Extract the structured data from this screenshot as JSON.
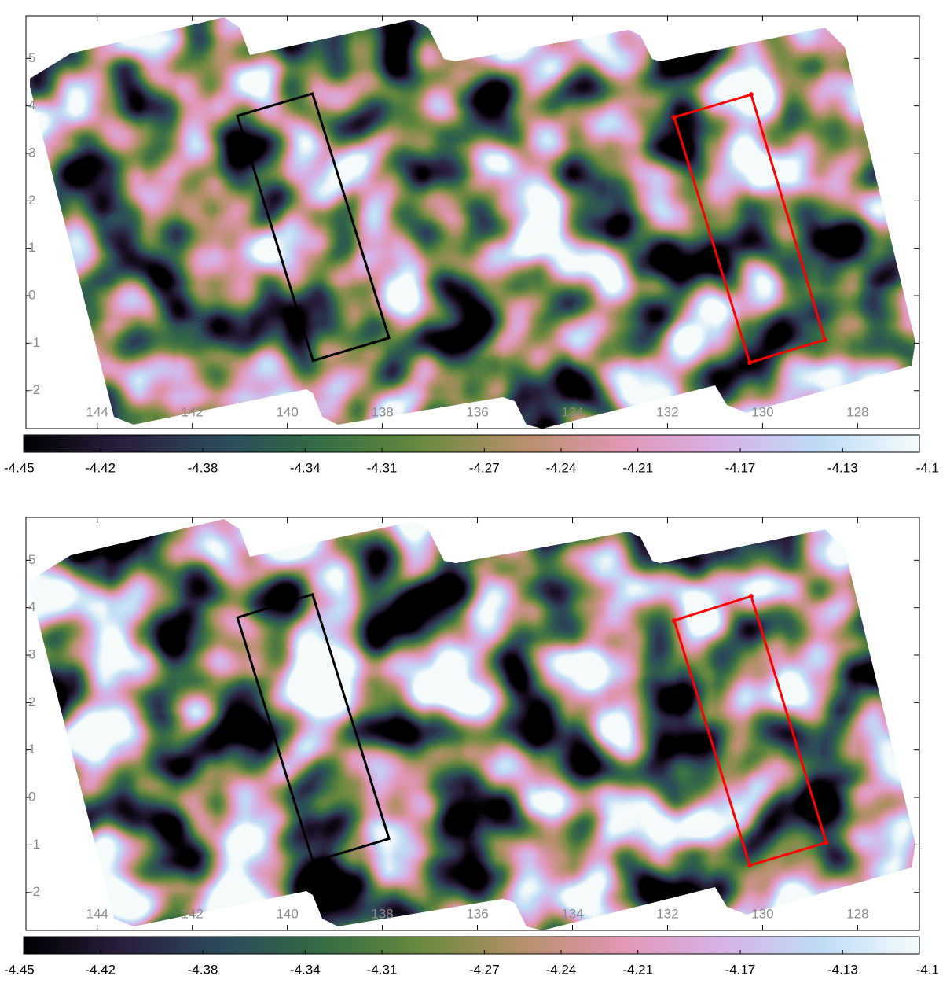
{
  "chart_data": [
    {
      "type": "heatmap",
      "xlim": [
        145.5,
        126.7
      ],
      "ylim": [
        -2.8,
        5.9
      ],
      "xticks": [
        144,
        142,
        140,
        138,
        136,
        134,
        132,
        130,
        128
      ],
      "yticks": [
        -2,
        -1,
        0,
        1,
        2,
        3,
        4,
        5
      ],
      "colormap": [
        "#000000",
        "#2a1f3d",
        "#2c4a5a",
        "#356b45",
        "#6a8a3e",
        "#b5906a",
        "#e296b4",
        "#d7b2e6",
        "#bfdcf5",
        "#f5fbfb"
      ],
      "colorbar": {
        "lim": [
          -4.45,
          -4.1
        ],
        "ticks": [
          -4.45,
          -4.42,
          -4.38,
          -4.34,
          -4.31,
          -4.27,
          -4.24,
          -4.21,
          -4.17,
          -4.13,
          -4.1
        ]
      },
      "regions": [
        {
          "color": "#000000",
          "x": [
            141.05,
            139.47,
            137.86,
            139.46
          ],
          "y": [
            3.79,
            4.26,
            -0.89,
            -1.37
          ]
        },
        {
          "color": "#ff0000",
          "x": [
            131.86,
            130.24,
            128.69,
            130.27
          ],
          "y": [
            3.76,
            4.24,
            -0.93,
            -1.41
          ]
        }
      ]
    },
    {
      "type": "heatmap",
      "xlim": [
        145.5,
        126.7
      ],
      "ylim": [
        -2.8,
        5.9
      ],
      "xticks": [
        144,
        142,
        140,
        138,
        136,
        134,
        132,
        130,
        128
      ],
      "yticks": [
        -2,
        -1,
        0,
        1,
        2,
        3,
        4,
        5
      ],
      "colormap": [
        "#000000",
        "#2a1f3d",
        "#2c4a5a",
        "#356b45",
        "#6a8a3e",
        "#b5906a",
        "#e296b4",
        "#d7b2e6",
        "#bfdcf5",
        "#f5fbfb"
      ],
      "colorbar": {
        "lim": [
          -4.45,
          -4.1
        ],
        "ticks": [
          -4.45,
          -4.42,
          -4.38,
          -4.34,
          -4.31,
          -4.27,
          -4.24,
          -4.21,
          -4.17,
          -4.13,
          -4.1
        ]
      },
      "regions": [
        {
          "color": "#000000",
          "x": [
            141.05,
            139.47,
            137.86,
            139.46
          ],
          "y": [
            3.79,
            4.28,
            -0.87,
            -1.35
          ]
        },
        {
          "color": "#ff0000",
          "x": [
            131.86,
            130.24,
            128.66,
            130.27
          ],
          "y": [
            3.73,
            4.24,
            -0.95,
            -1.43
          ]
        }
      ]
    }
  ]
}
